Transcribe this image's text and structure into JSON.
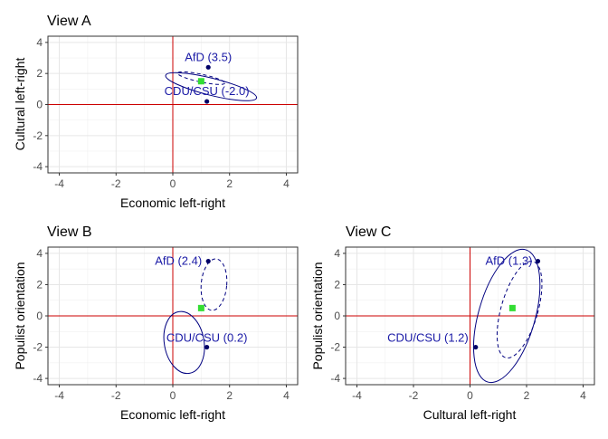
{
  "chart_data": [
    {
      "type": "scatter",
      "title": "View A",
      "xlabel": "Economic left-right",
      "ylabel": "Cultural left-right",
      "xlim": [
        -4.4,
        4.4
      ],
      "ylim": [
        -4.4,
        4.4
      ],
      "xticks": [
        -4,
        -2,
        0,
        2,
        4
      ],
      "yticks": [
        -4,
        -2,
        0,
        2,
        4
      ],
      "ref_lines": {
        "x": 0,
        "y": 0,
        "color": "#cc0000"
      },
      "center": {
        "x": 1.0,
        "y": 1.5,
        "color": "#33dd33"
      },
      "points": [
        {
          "label": "AfD (3.5)",
          "x": 1.25,
          "y": 2.4
        },
        {
          "label": "CDU/CSU (-2.0)",
          "x": 1.2,
          "y": 0.2
        }
      ],
      "ellipses": [
        {
          "cx": 1.35,
          "cy": 1.15,
          "rx": 1.65,
          "ry": 0.55,
          "angle": 14,
          "style": "solid"
        },
        {
          "cx": 1.0,
          "cy": 1.7,
          "rx": 0.85,
          "ry": 0.25,
          "angle": 12,
          "style": "dashed"
        }
      ],
      "point_color": "#000066",
      "ellipse_color": "#000080"
    },
    {
      "type": "scatter",
      "title": "View B",
      "xlabel": "Economic left-right",
      "ylabel": "Populist orientation",
      "xlim": [
        -4.4,
        4.4
      ],
      "ylim": [
        -4.4,
        4.4
      ],
      "xticks": [
        -4,
        -2,
        0,
        2,
        4
      ],
      "yticks": [
        -4,
        -2,
        0,
        2,
        4
      ],
      "ref_lines": {
        "x": 0,
        "y": 0,
        "color": "#cc0000"
      },
      "center": {
        "x": 1.0,
        "y": 0.5,
        "color": "#33dd33"
      },
      "points": [
        {
          "label": "AfD (2.4)",
          "x": 1.25,
          "y": 3.5
        },
        {
          "label": "CDU/CSU (0.2)",
          "x": 1.2,
          "y": -2.0
        }
      ],
      "ellipses": [
        {
          "cx": 0.4,
          "cy": -1.7,
          "rx": 0.7,
          "ry": 2.0,
          "angle": -10,
          "style": "solid"
        },
        {
          "cx": 1.45,
          "cy": 2.0,
          "rx": 0.45,
          "ry": 1.65,
          "angle": 5,
          "style": "dashed"
        }
      ],
      "point_color": "#000066",
      "ellipse_color": "#000080"
    },
    {
      "type": "scatter",
      "title": "View C",
      "xlabel": "Cultural left-right",
      "ylabel": "Populist orientation",
      "xlim": [
        -4.4,
        4.4
      ],
      "ylim": [
        -4.4,
        4.4
      ],
      "xticks": [
        -4,
        -2,
        0,
        2,
        4
      ],
      "yticks": [
        -4,
        -2,
        0,
        2,
        4
      ],
      "ref_lines": {
        "x": 0,
        "y": 0,
        "color": "#cc0000"
      },
      "center": {
        "x": 1.5,
        "y": 0.5,
        "color": "#33dd33"
      },
      "points": [
        {
          "label": "AfD (1.3)",
          "x": 2.4,
          "y": 3.5
        },
        {
          "label": "CDU/CSU (1.2)",
          "x": 0.2,
          "y": -2.0
        }
      ],
      "ellipses": [
        {
          "cx": 1.3,
          "cy": 0.0,
          "rx": 1.0,
          "ry": 4.4,
          "angle": 16,
          "style": "solid"
        },
        {
          "cx": 1.75,
          "cy": 0.4,
          "rx": 0.65,
          "ry": 3.2,
          "angle": 16,
          "style": "dashed"
        }
      ],
      "point_color": "#000066",
      "ellipse_color": "#000080"
    }
  ]
}
